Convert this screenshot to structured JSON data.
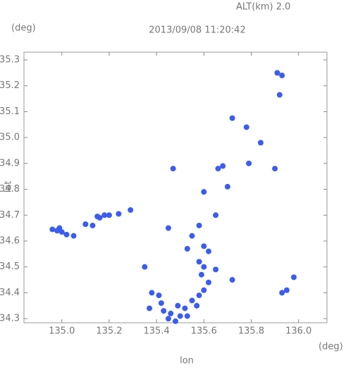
{
  "chart_data": {
    "type": "scatter",
    "annotation": "ALT(km) 2.0",
    "title": "2013/09/08 11:20:42",
    "x_unit": "(deg)",
    "y_unit": "(deg)",
    "xlabel": "lon",
    "ylabel": "lat",
    "xlim": [
      134.84,
      136.12
    ],
    "ylim": [
      34.284,
      35.33
    ],
    "xticks": [
      {
        "value": 135,
        "label": "135.0"
      },
      135.2,
      135.4,
      135.6,
      135.8,
      {
        "value": 136,
        "label": "136.0"
      }
    ],
    "yticks": [
      34.3,
      34.4,
      34.5,
      34.6,
      34.7,
      34.8,
      34.9,
      {
        "value": 35,
        "label": "35.0"
      },
      35.1,
      35.2,
      35.3
    ],
    "color": "#3b5cf0",
    "x": [
      134.96,
      134.98,
      135.0,
      135.02,
      135.05,
      134.99,
      135.1,
      135.13,
      135.16,
      135.18,
      135.15,
      135.2,
      135.24,
      135.29,
      135.91,
      135.93,
      135.92,
      135.72,
      135.78,
      135.84,
      135.68,
      135.66,
      135.79,
      135.47,
      135.6,
      135.7,
      135.9,
      135.45,
      135.58,
      135.65,
      135.55,
      135.6,
      135.53,
      135.62,
      135.58,
      135.6,
      135.65,
      135.35,
      135.72,
      135.93,
      135.95,
      135.98,
      135.38,
      135.41,
      135.37,
      135.43,
      135.45,
      135.48,
      135.46,
      135.5,
      135.52,
      135.55,
      135.58,
      135.6,
      135.62,
      135.59,
      135.57,
      135.53,
      135.49,
      135.42
    ],
    "y": [
      34.645,
      34.64,
      34.635,
      34.625,
      34.62,
      34.65,
      34.665,
      34.66,
      34.69,
      34.7,
      34.695,
      34.7,
      34.705,
      34.72,
      35.25,
      35.24,
      35.165,
      35.075,
      35.04,
      34.98,
      34.89,
      34.88,
      34.9,
      34.88,
      34.79,
      34.81,
      34.88,
      34.65,
      34.66,
      34.7,
      34.62,
      34.58,
      34.57,
      34.56,
      34.52,
      34.5,
      34.49,
      34.5,
      34.45,
      34.4,
      34.41,
      34.46,
      34.4,
      34.39,
      34.34,
      34.33,
      34.3,
      34.29,
      34.32,
      34.31,
      34.34,
      34.37,
      34.39,
      34.41,
      34.44,
      34.47,
      34.35,
      34.31,
      34.35,
      34.36
    ]
  }
}
